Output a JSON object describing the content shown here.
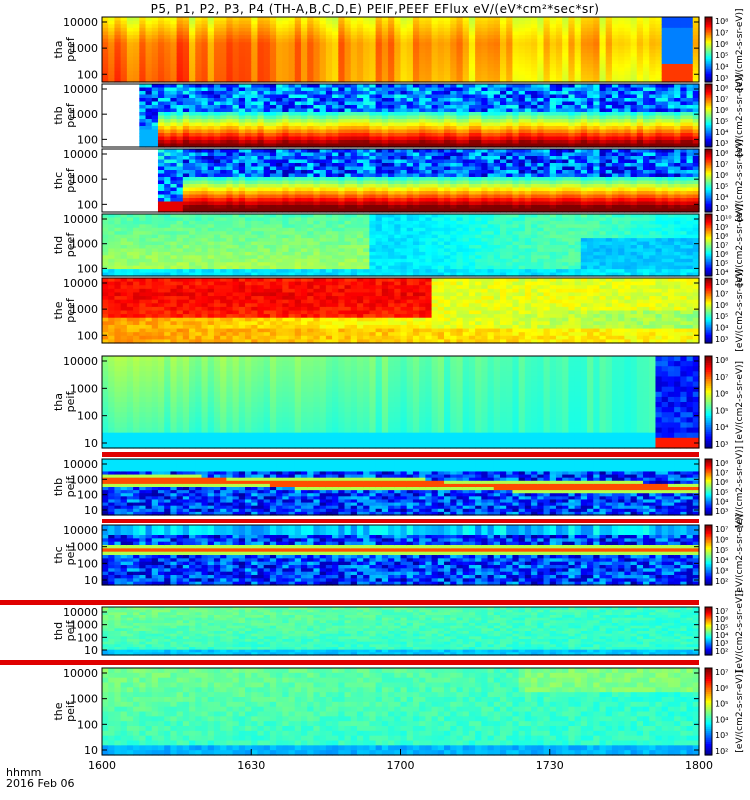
{
  "title": "P5, P1, P2, P3, P4 (TH-A,B,C,D,E) PEIF,PEEF EFlux eV/(eV*cm²*sec*sr)",
  "footer": {
    "time_format": "hhmm",
    "date": "2016 Feb 06"
  },
  "colorbar_label": "[eV/(cm2-s-sr-eV)]",
  "chart_data": {
    "type": "heatmap",
    "x_ticks": [
      "1600",
      "1630",
      "1700",
      "1730",
      "1800"
    ],
    "x_range": [
      "1600",
      "1800"
    ],
    "y_scale": "log",
    "panels": [
      {
        "probe": "tha",
        "species": "peef",
        "ylabel": [
          "tha",
          "peef"
        ],
        "yticks": [
          "10000",
          "1000",
          "100"
        ],
        "cbar_ticks": [
          "10⁸",
          "10⁷",
          "10⁶",
          "10⁵",
          "10⁴",
          "10³"
        ],
        "pattern": "tha_e"
      },
      {
        "probe": "thb",
        "species": "peef",
        "ylabel": [
          "thb",
          "peef"
        ],
        "yticks": [
          "10000",
          "1000",
          "100"
        ],
        "cbar_ticks": [
          "10⁸",
          "10⁷",
          "10⁶",
          "10⁵",
          "10⁴",
          "10³"
        ],
        "pattern": "thb_e"
      },
      {
        "probe": "thc",
        "species": "peef",
        "ylabel": [
          "thc",
          "peef"
        ],
        "yticks": [
          "10000",
          "1000",
          "100"
        ],
        "cbar_ticks": [
          "10⁸",
          "10⁷",
          "10⁶",
          "10⁵",
          "10⁴",
          "10³"
        ],
        "pattern": "thc_e"
      },
      {
        "probe": "thd",
        "species": "peef",
        "ylabel": [
          "thd",
          "peef"
        ],
        "yticks": [
          "10000",
          "1000",
          "100"
        ],
        "cbar_ticks": [
          "10¹⁰",
          "10⁹",
          "10⁸",
          "10⁷",
          "10⁶",
          "10⁵",
          "10⁴"
        ],
        "pattern": "thd_e"
      },
      {
        "probe": "the",
        "species": "peef",
        "ylabel": [
          "the",
          "peef"
        ],
        "yticks": [
          "10000",
          "1000",
          "100"
        ],
        "cbar_ticks": [
          "10⁸",
          "10⁷",
          "10⁶",
          "10⁵",
          "10⁴",
          "10³"
        ],
        "pattern": "the_e"
      },
      {
        "probe": "tha",
        "species": "peif",
        "ylabel": [
          "tha",
          "peif"
        ],
        "yticks": [
          "10000",
          "1000",
          "100",
          "10"
        ],
        "cbar_ticks": [
          "10⁸",
          "10⁷",
          "10⁶",
          "10⁵",
          "10⁴",
          "10³"
        ],
        "pattern": "tha_i"
      },
      {
        "probe": "thb",
        "species": "peif",
        "ylabel": [
          "thb",
          "peif"
        ],
        "yticks": [
          "10000",
          "1000",
          "100",
          "10"
        ],
        "cbar_ticks": [
          "10⁸",
          "10⁷",
          "10⁶",
          "10⁵",
          "10⁴",
          "10³"
        ],
        "pattern": "thb_i"
      },
      {
        "probe": "thc",
        "species": "peif",
        "ylabel": [
          "thc",
          "peif"
        ],
        "yticks": [
          "10000",
          "1000",
          "100",
          "10"
        ],
        "cbar_ticks": [
          "10⁷",
          "10⁶",
          "10⁵",
          "10⁴",
          "10³",
          "10²"
        ],
        "pattern": "thc_i"
      },
      {
        "probe": "thd",
        "species": "peif",
        "ylabel": [
          "thd",
          "peif"
        ],
        "yticks": [
          "10000",
          "1000",
          "100",
          "10"
        ],
        "cbar_ticks": [
          "10⁷",
          "10⁶",
          "10⁵",
          "10⁴",
          "10³",
          "10²"
        ],
        "pattern": "thd_i"
      },
      {
        "probe": "the",
        "species": "peif",
        "ylabel": [
          "the",
          "peif"
        ],
        "yticks": [
          "10000",
          "1000",
          "100",
          "10"
        ],
        "cbar_ticks": [
          "10⁷",
          "10⁶",
          "10⁵",
          "10⁴",
          "10³",
          "10²"
        ],
        "pattern": "the_i"
      }
    ]
  }
}
